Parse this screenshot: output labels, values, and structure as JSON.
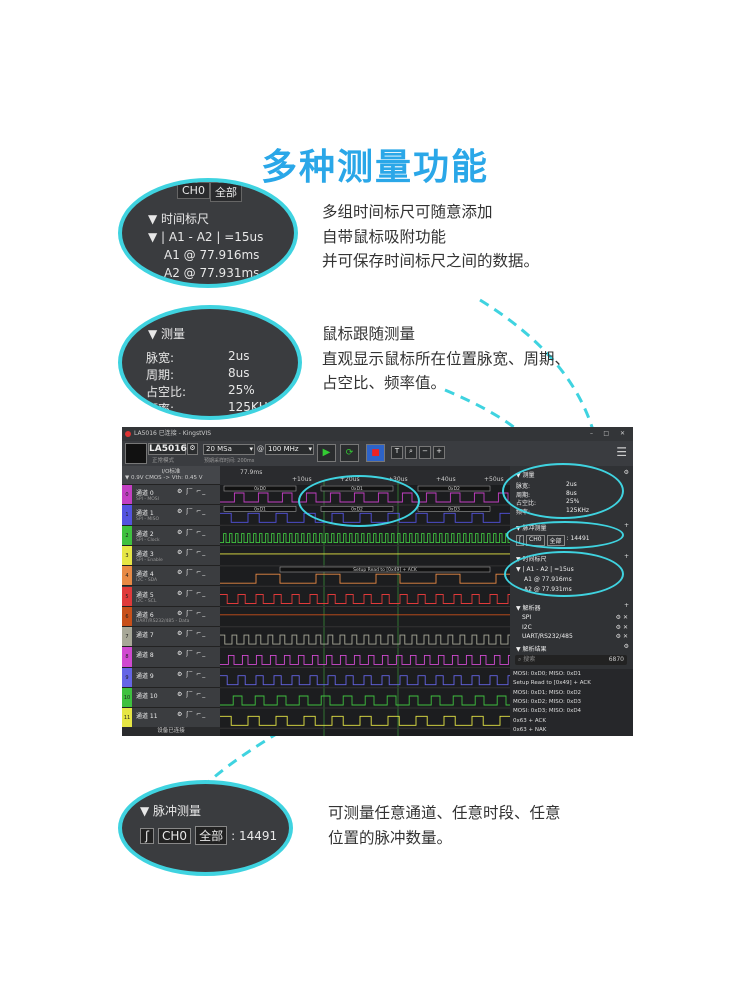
{
  "title": "多种测量功能",
  "callout_cursor": {
    "top_bar": [
      "CH0",
      "全部"
    ],
    "heading": "时间标尺",
    "line": "▼ | A1 - A2 | =15us",
    "a1": "A1 @ 77.916ms",
    "a2": "A2 @ 77.931ms"
  },
  "desc_cursor": [
    "多组时间标尺可随意添加",
    "自带鼠标吸附功能",
    "并可保存时间标尺之间的数据。"
  ],
  "callout_measure": {
    "heading": "▼ 测量",
    "rows": [
      {
        "k": "脉宽:",
        "v": "2us"
      },
      {
        "k": "周期:",
        "v": "8us"
      },
      {
        "k": "占空比:",
        "v": "25%"
      },
      {
        "k": "频率:",
        "v": "125KHz"
      }
    ]
  },
  "desc_measure": [
    "鼠标跟随测量",
    "直观显示鼠标所在位置脉宽、周期、",
    "占空比、频率值。"
  ],
  "callout_pulse": {
    "heading": "▼ 脉冲测量",
    "ch": "CH0",
    "all": "全部",
    "count": ": 14491"
  },
  "desc_pulse": [
    "可测量任意通道、任意时段、任意",
    "位置的脉冲数量。"
  ],
  "app": {
    "window_title": "LA5016 已连接 - KingstVIS",
    "device": "LA5016",
    "mode": "正常模式",
    "sample_rate": "20 MSa",
    "at": "@",
    "freq": "100 MHz",
    "sample_time": "预期采样时间: 200ms",
    "io_std": "I/O标准",
    "io_level": "▼ 0.9V CMOS -> Vth: 0.45 V",
    "ruler": [
      "77.9ms",
      "+10us",
      "+20us",
      "+30us",
      "+40us",
      "+50us"
    ],
    "decode_ch0": [
      "0xD0",
      "0xD1",
      "0xD2"
    ],
    "decode_ch1": [
      "0xD1",
      "0xD2",
      "0xD3"
    ],
    "decode_ch4": "Setup Read to [0x49] + ACK",
    "status": "设备已连接",
    "channels": [
      {
        "name": "通道 0",
        "sub": "SPI - MOSI",
        "color": "#c33fc3"
      },
      {
        "name": "通道 1",
        "sub": "SPI - MISO",
        "color": "#5353e0"
      },
      {
        "name": "通道 2",
        "sub": "SPI - Clock",
        "color": "#3fc13f"
      },
      {
        "name": "通道 3",
        "sub": "SPI - Enable",
        "color": "#e6e645"
      },
      {
        "name": "通道 4",
        "sub": "I2C - SDA",
        "color": "#e88a45"
      },
      {
        "name": "通道 5",
        "sub": "I2C - SCL",
        "color": "#e03a3a"
      },
      {
        "name": "通道 6",
        "sub": "UART/RS232/485 - Data",
        "color": "#c8501a"
      },
      {
        "name": "通道 7",
        "sub": "",
        "color": "#a8a898"
      },
      {
        "name": "通道 8",
        "sub": "",
        "color": "#d04ad0"
      },
      {
        "name": "通道 9",
        "sub": "",
        "color": "#6565e6"
      },
      {
        "name": "通道 10",
        "sub": "",
        "color": "#3fc13f"
      },
      {
        "name": "通道 11",
        "sub": "",
        "color": "#e6e645"
      }
    ],
    "channel_icons": "⚙ ʃ‾ ⌐_",
    "panel": {
      "measure": {
        "heading": "▼ 测量",
        "rows": [
          {
            "k": "脉宽:",
            "v": "2us"
          },
          {
            "k": "周期:",
            "v": "8us"
          },
          {
            "k": "占空比:",
            "v": "25%"
          },
          {
            "k": "频率:",
            "v": "125KHz"
          }
        ]
      },
      "pulse": {
        "heading": "▼ 脉冲测量",
        "ch": "CH0",
        "all": "全部",
        "count": ": 14491"
      },
      "cursor": {
        "heading": "▼ 时间标尺",
        "line": "▼ | A1 - A2 | =15us",
        "a1": "A1 @ 77.916ms",
        "a2": "A2 @ 77.931ms"
      },
      "analyzers": {
        "heading": "▼ 解析器",
        "items": [
          "SPI",
          "I2C",
          "UART/RS232/485"
        ]
      },
      "results": {
        "heading": "▼ 解析结果",
        "search_placeholder": "搜索",
        "count": "6870",
        "items": [
          "MOSI: 0xD0; MISO: 0xD1",
          "Setup Read to [0x49] + ACK",
          "MOSI: 0xD1; MISO: 0xD2",
          "MOSI: 0xD2; MISO: 0xD3",
          "MOSI: 0xD3; MISO: 0xD4",
          "0x63 + ACK",
          "0x63 + NAK"
        ]
      }
    }
  },
  "accent": "#3fd3e0",
  "title_color": "#2aa7e8"
}
